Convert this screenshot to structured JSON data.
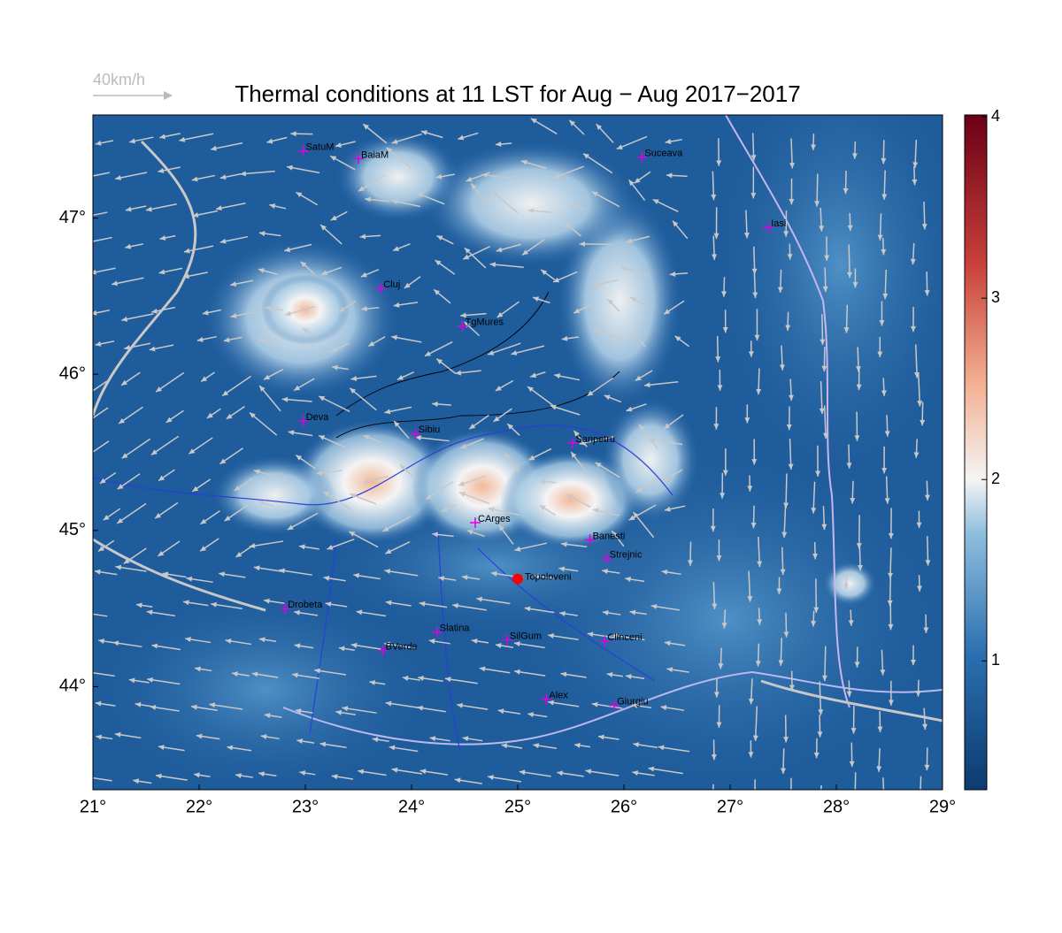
{
  "map": {
    "title": "Thermal conditions at 11 LST for Aug − Aug  2017−2017",
    "wind_scale_label": "40km/h",
    "xlim": [
      21,
      29
    ],
    "ylim": [
      43.34,
      47.66
    ],
    "xticks": [
      {
        "value": 21,
        "label": "21°"
      },
      {
        "value": 22,
        "label": "22°"
      },
      {
        "value": 23,
        "label": "23°"
      },
      {
        "value": 24,
        "label": "24°"
      },
      {
        "value": 25,
        "label": "25°"
      },
      {
        "value": 26,
        "label": "26°"
      },
      {
        "value": 27,
        "label": "27°"
      },
      {
        "value": 28,
        "label": "28°"
      },
      {
        "value": 29,
        "label": "29°"
      }
    ],
    "yticks": [
      {
        "value": 44,
        "label": "44°"
      },
      {
        "value": 45,
        "label": "45°"
      },
      {
        "value": 46,
        "label": "46°"
      },
      {
        "value": 47,
        "label": "47°"
      }
    ],
    "colorbar": {
      "lim": [
        0.29,
        4.01
      ],
      "ticks": [
        1,
        2,
        3,
        4
      ]
    },
    "cities": [
      {
        "name": "SatuM",
        "lon": 22.98,
        "lat": 47.43
      },
      {
        "name": "BaiaM",
        "lon": 23.5,
        "lat": 47.38
      },
      {
        "name": "Suceava",
        "lon": 26.17,
        "lat": 47.39
      },
      {
        "name": "Iasi",
        "lon": 27.36,
        "lat": 46.94
      },
      {
        "name": "Cluj",
        "lon": 23.71,
        "lat": 46.55
      },
      {
        "name": "TgMures",
        "lon": 24.48,
        "lat": 46.31
      },
      {
        "name": "Deva",
        "lon": 22.98,
        "lat": 45.7
      },
      {
        "name": "Sibiu",
        "lon": 24.04,
        "lat": 45.62
      },
      {
        "name": "Sanpetru",
        "lon": 25.52,
        "lat": 45.56
      },
      {
        "name": "CArges",
        "lon": 24.6,
        "lat": 45.05
      },
      {
        "name": "Banesti",
        "lon": 25.68,
        "lat": 44.94
      },
      {
        "name": "Strejnic",
        "lon": 25.84,
        "lat": 44.82
      },
      {
        "name": "Drobeta",
        "lon": 22.81,
        "lat": 44.5
      },
      {
        "name": "Slatina",
        "lon": 24.24,
        "lat": 44.35
      },
      {
        "name": "SilGum",
        "lon": 24.9,
        "lat": 44.3
      },
      {
        "name": "BVerde",
        "lon": 23.73,
        "lat": 44.23
      },
      {
        "name": "Clinceni",
        "lon": 25.82,
        "lat": 44.29
      },
      {
        "name": "Alex",
        "lon": 25.27,
        "lat": 43.92
      },
      {
        "name": "Giurgiu",
        "lon": 25.91,
        "lat": 43.88
      }
    ],
    "site": {
      "name": "Topoloveni",
      "lon": 25.0,
      "lat": 44.69,
      "color": "#ff0000"
    }
  }
}
